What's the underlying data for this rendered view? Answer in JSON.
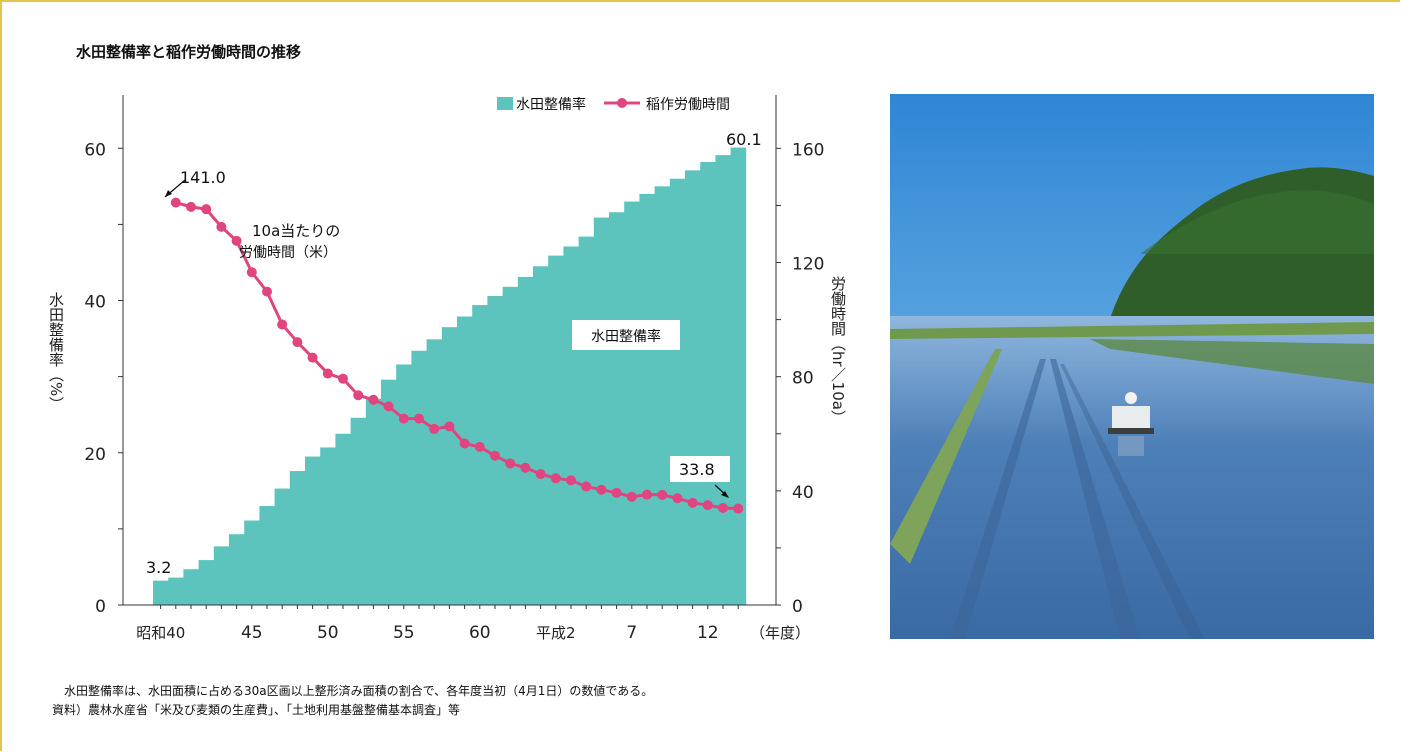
{
  "title": "水田整備率と稲作労働時間の推移",
  "notes": {
    "line1": "　水田整備率は、水田面積に占める30a区画以上整形済み面積の割合で、各年度当初（4月1日）の数値である。",
    "line2": "資料）農林水産省「米及び麦類の生産費」、「土地利用基盤整備基本調査」等"
  },
  "chart_data": {
    "type": "bar+line",
    "title": "水田整備率と稲作労働時間の推移",
    "x": {
      "tick_labels": [
        "昭和40",
        "45",
        "50",
        "55",
        "60",
        "平成2",
        "7",
        "12"
      ],
      "unit_label": "（年度）"
    },
    "y_left": {
      "label": "水田整備率（%）",
      "range": [
        0,
        67
      ],
      "ticks": [
        0,
        20,
        40,
        60
      ]
    },
    "y_right": {
      "label": "労働時間（hr／10a）",
      "range": [
        0,
        178.7
      ],
      "ticks": [
        0,
        40,
        80,
        120,
        160
      ]
    },
    "legend": {
      "position": "top-right",
      "items": [
        "水田整備率",
        "稲作労働時間"
      ]
    },
    "years": [
      1965,
      1966,
      1967,
      1968,
      1969,
      1970,
      1971,
      1972,
      1973,
      1974,
      1975,
      1976,
      1977,
      1978,
      1979,
      1980,
      1981,
      1982,
      1983,
      1984,
      1985,
      1986,
      1987,
      1988,
      1989,
      1990,
      1991,
      1992,
      1993,
      1994,
      1995,
      1996,
      1997,
      1998,
      1999,
      2000,
      2001,
      2002,
      2003
    ],
    "series": [
      {
        "name": "水田整備率",
        "kind": "bar",
        "axis": "left",
        "color": "#5dc4bd",
        "values": [
          3.2,
          3.6,
          4.7,
          5.9,
          7.7,
          9.3,
          11.1,
          13.0,
          15.3,
          17.6,
          19.5,
          20.7,
          22.5,
          24.6,
          27.1,
          29.6,
          31.6,
          33.4,
          34.9,
          36.5,
          37.9,
          39.4,
          40.6,
          41.8,
          43.1,
          44.5,
          45.9,
          47.1,
          48.4,
          50.9,
          51.6,
          53.0,
          54.0,
          55.0,
          56.0,
          57.1,
          58.2,
          59.1,
          60.1
        ]
      },
      {
        "name": "稲作労働時間",
        "kind": "line",
        "axis": "right",
        "color": "#e0457f",
        "values": [
          141.0,
          139.5,
          138.7,
          132.5,
          127.6,
          116.6,
          109.8,
          98.3,
          92.1,
          86.7,
          81.1,
          79.3,
          73.5,
          71.9,
          69.6,
          65.3,
          65.3,
          61.7,
          62.6,
          56.6,
          55.4,
          52.3,
          49.6,
          48.1,
          45.9,
          44.4,
          43.7,
          41.5,
          40.4,
          39.3,
          37.9,
          38.7,
          38.6,
          37.4,
          35.8,
          35.0,
          34.0,
          33.8
        ]
      }
    ],
    "line_x_offset_years": 1,
    "annotations": {
      "bar_first": "3.2",
      "bar_last": "60.1",
      "line_first": "141.0",
      "line_last": "33.8",
      "line_note_1": "10a当たりの",
      "line_note_2": "労働時間（米）",
      "area_label": "水田整備率"
    }
  },
  "photo": {
    "sky": "#3f97d8",
    "forest": "#2e5e2a",
    "water": "#4a7bb4",
    "dike": "#7ea35a"
  }
}
